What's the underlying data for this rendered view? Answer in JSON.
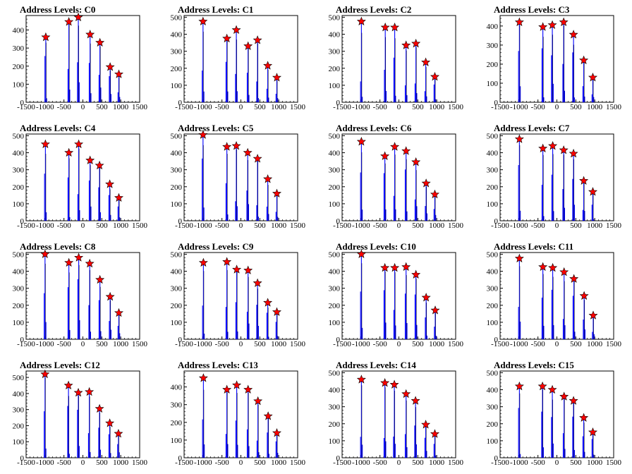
{
  "chart_data": [
    {
      "type": "histogram",
      "title": "Address Levels: C0",
      "xlim": [
        -1500,
        1500
      ],
      "ylim": [
        0,
        480
      ],
      "xticks": [
        -1500,
        -1000,
        -500,
        0,
        500,
        1000,
        1500
      ],
      "yticks": [
        0,
        100,
        200,
        300,
        400
      ],
      "peak_x": [
        -980,
        -370,
        -120,
        190,
        450,
        720,
        950
      ],
      "peak_y": [
        360,
        445,
        470,
        375,
        330,
        195,
        155
      ]
    },
    {
      "type": "histogram",
      "title": "Address Levels: C1",
      "xlim": [
        -1500,
        1500
      ],
      "ylim": [
        0,
        510
      ],
      "xticks": [
        -1500,
        -1000,
        -500,
        0,
        500,
        1000,
        1500
      ],
      "yticks": [
        0,
        100,
        200,
        300,
        400,
        500
      ],
      "peak_x": [
        -1000,
        -370,
        -120,
        190,
        440,
        710,
        950
      ],
      "peak_y": [
        475,
        375,
        425,
        330,
        365,
        215,
        145
      ]
    },
    {
      "type": "histogram",
      "title": "Address Levels: C2",
      "xlim": [
        -1500,
        1500
      ],
      "ylim": [
        0,
        510
      ],
      "xticks": [
        -1500,
        -1000,
        -500,
        0,
        500,
        1000,
        1500
      ],
      "yticks": [
        0,
        100,
        200,
        300,
        400,
        500
      ],
      "peak_x": [
        -990,
        -360,
        -110,
        190,
        450,
        710,
        950
      ],
      "peak_y": [
        475,
        440,
        440,
        335,
        345,
        235,
        150
      ]
    },
    {
      "type": "histogram",
      "title": "Address Levels: C3",
      "xlim": [
        -1500,
        1500
      ],
      "ylim": [
        0,
        455
      ],
      "xticks": [
        -1500,
        -1000,
        -500,
        0,
        500,
        1000,
        1500
      ],
      "yticks": [
        0,
        100,
        200,
        300,
        400
      ],
      "peak_x": [
        -990,
        -370,
        -120,
        180,
        440,
        710,
        950
      ],
      "peak_y": [
        420,
        395,
        405,
        420,
        355,
        220,
        130
      ]
    },
    {
      "type": "histogram",
      "title": "Address Levels: C4",
      "xlim": [
        -1500,
        1500
      ],
      "ylim": [
        0,
        510
      ],
      "xticks": [
        -1500,
        -1000,
        -500,
        0,
        500,
        1000,
        1500
      ],
      "yticks": [
        0,
        100,
        200,
        300,
        400,
        500
      ],
      "peak_x": [
        -990,
        -370,
        -110,
        190,
        440,
        710,
        950
      ],
      "peak_y": [
        450,
        400,
        450,
        355,
        325,
        215,
        135
      ]
    },
    {
      "type": "histogram",
      "title": "Address Levels: C5",
      "xlim": [
        -1500,
        1500
      ],
      "ylim": [
        0,
        510
      ],
      "xticks": [
        -1500,
        -1000,
        -500,
        0,
        500,
        1000,
        1500
      ],
      "yticks": [
        0,
        100,
        200,
        300,
        400,
        500
      ],
      "peak_x": [
        -1000,
        -370,
        -120,
        180,
        440,
        710,
        950
      ],
      "peak_y": [
        505,
        435,
        440,
        400,
        365,
        245,
        160
      ]
    },
    {
      "type": "histogram",
      "title": "Address Levels: C6",
      "xlim": [
        -1500,
        1500
      ],
      "ylim": [
        0,
        510
      ],
      "xticks": [
        -1500,
        -1000,
        -500,
        0,
        500,
        1000,
        1500
      ],
      "yticks": [
        0,
        100,
        200,
        300,
        400,
        500
      ],
      "peak_x": [
        -990,
        -370,
        -110,
        190,
        450,
        720,
        950
      ],
      "peak_y": [
        465,
        380,
        435,
        410,
        345,
        220,
        155
      ]
    },
    {
      "type": "histogram",
      "title": "Address Levels: C7",
      "xlim": [
        -1500,
        1500
      ],
      "ylim": [
        0,
        510
      ],
      "xticks": [
        -1500,
        -1000,
        -500,
        0,
        500,
        1000,
        1500
      ],
      "yticks": [
        0,
        100,
        200,
        300,
        400,
        500
      ],
      "peak_x": [
        -990,
        -370,
        -110,
        180,
        440,
        710,
        950
      ],
      "peak_y": [
        480,
        425,
        440,
        415,
        395,
        235,
        170
      ]
    },
    {
      "type": "histogram",
      "title": "Address Levels: C8",
      "xlim": [
        -1500,
        1500
      ],
      "ylim": [
        0,
        510
      ],
      "xticks": [
        -1500,
        -1000,
        -500,
        0,
        500,
        1000,
        1500
      ],
      "yticks": [
        0,
        100,
        200,
        300,
        400,
        500
      ],
      "peak_x": [
        -1000,
        -370,
        -110,
        180,
        450,
        720,
        950
      ],
      "peak_y": [
        500,
        450,
        480,
        445,
        350,
        250,
        155
      ]
    },
    {
      "type": "histogram",
      "title": "Address Levels: C9",
      "xlim": [
        -1500,
        1500
      ],
      "ylim": [
        0,
        510
      ],
      "xticks": [
        -1500,
        -1000,
        -500,
        0,
        500,
        1000,
        1500
      ],
      "yticks": [
        0,
        100,
        200,
        300,
        400,
        500
      ],
      "peak_x": [
        -990,
        -370,
        -110,
        190,
        440,
        710,
        950
      ],
      "peak_y": [
        450,
        455,
        410,
        405,
        330,
        215,
        160
      ]
    },
    {
      "type": "histogram",
      "title": "Address Levels: C10",
      "xlim": [
        -1500,
        1500
      ],
      "ylim": [
        0,
        510
      ],
      "xticks": [
        -1500,
        -1000,
        -500,
        0,
        500,
        1000,
        1500
      ],
      "yticks": [
        0,
        100,
        200,
        300,
        400,
        500
      ],
      "peak_x": [
        -990,
        -370,
        -110,
        190,
        450,
        720,
        960
      ],
      "peak_y": [
        500,
        420,
        420,
        425,
        380,
        245,
        170
      ]
    },
    {
      "type": "histogram",
      "title": "Address Levels: C11",
      "xlim": [
        -1500,
        1500
      ],
      "ylim": [
        0,
        510
      ],
      "xticks": [
        -1500,
        -1000,
        -500,
        0,
        500,
        1000,
        1500
      ],
      "yticks": [
        0,
        100,
        200,
        300,
        400,
        500
      ],
      "peak_x": [
        -990,
        -370,
        -110,
        190,
        450,
        720,
        960
      ],
      "peak_y": [
        475,
        425,
        420,
        395,
        355,
        255,
        140
      ]
    },
    {
      "type": "histogram",
      "title": "Address Levels: C12",
      "xlim": [
        -1500,
        1500
      ],
      "ylim": [
        0,
        540
      ],
      "xticks": [
        -1500,
        -1000,
        -500,
        0,
        500,
        1000,
        1500
      ],
      "yticks": [
        0,
        100,
        200,
        300,
        400,
        500
      ],
      "peak_x": [
        -1000,
        -380,
        -120,
        170,
        440,
        710,
        940
      ],
      "peak_y": [
        520,
        450,
        405,
        410,
        305,
        215,
        150
      ]
    },
    {
      "type": "histogram",
      "title": "Address Levels: C13",
      "xlim": [
        -1500,
        1500
      ],
      "ylim": [
        0,
        490
      ],
      "xticks": [
        -1500,
        -1000,
        -500,
        0,
        500,
        1000,
        1500
      ],
      "yticks": [
        0,
        100,
        200,
        300,
        400
      ],
      "peak_x": [
        -990,
        -370,
        -110,
        190,
        450,
        720,
        950
      ],
      "peak_y": [
        450,
        385,
        410,
        385,
        320,
        235,
        140
      ]
    },
    {
      "type": "histogram",
      "title": "Address Levels: C14",
      "xlim": [
        -1500,
        1500
      ],
      "ylim": [
        0,
        510
      ],
      "xticks": [
        -1500,
        -1000,
        -500,
        0,
        500,
        1000,
        1500
      ],
      "yticks": [
        0,
        100,
        200,
        300,
        400,
        500
      ],
      "peak_x": [
        -990,
        -370,
        -120,
        190,
        440,
        710,
        950
      ],
      "peak_y": [
        460,
        440,
        430,
        375,
        335,
        195,
        140
      ]
    },
    {
      "type": "histogram",
      "title": "Address Levels: C15",
      "xlim": [
        -1500,
        1500
      ],
      "ylim": [
        0,
        510
      ],
      "xticks": [
        -1500,
        -1000,
        -500,
        0,
        500,
        1000,
        1500
      ],
      "yticks": [
        0,
        100,
        200,
        300,
        400,
        500
      ],
      "peak_x": [
        -990,
        -380,
        -120,
        190,
        440,
        710,
        950
      ],
      "peak_y": [
        420,
        420,
        400,
        360,
        335,
        235,
        150
      ]
    }
  ]
}
